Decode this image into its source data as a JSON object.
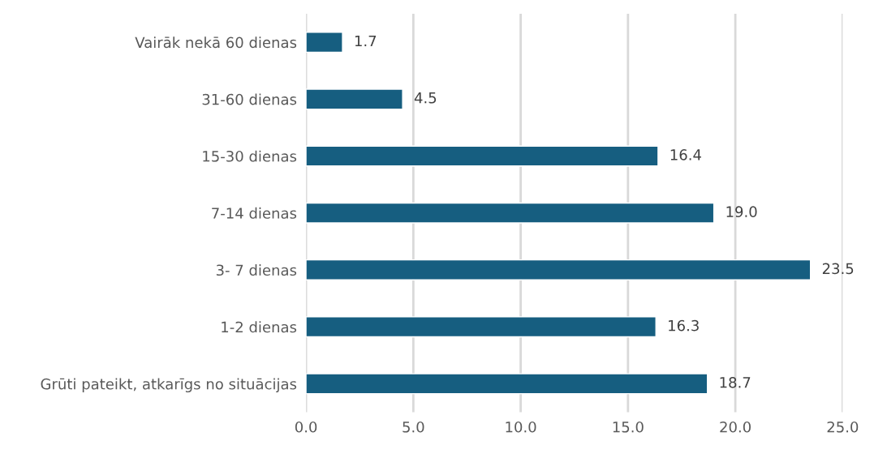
{
  "chart_data": {
    "type": "bar",
    "orientation": "horizontal",
    "categories": [
      "Vairāk nekā 60 dienas",
      "31-60 dienas",
      "15-30 dienas",
      "7-14 dienas",
      "3- 7 dienas",
      "1-2 dienas",
      "Grūti pateikt, atkarīgs no situācijas"
    ],
    "values": [
      1.7,
      4.5,
      16.4,
      19.0,
      23.5,
      16.3,
      18.7
    ],
    "color": "#165e80",
    "xlim": [
      0,
      25
    ],
    "xticks": [
      {
        "value": 0,
        "label": "0.0"
      },
      {
        "value": 5,
        "label": "5.0"
      },
      {
        "value": 10,
        "label": "10.0"
      },
      {
        "value": 15,
        "label": "15.0"
      },
      {
        "value": 20,
        "label": "20.0"
      },
      {
        "value": 25,
        "label": "25.0"
      }
    ],
    "grid": "x",
    "value_labels": [
      "1.7",
      "4.5",
      "16.4",
      "19.0",
      "23.5",
      "16.3",
      "18.7"
    ]
  }
}
